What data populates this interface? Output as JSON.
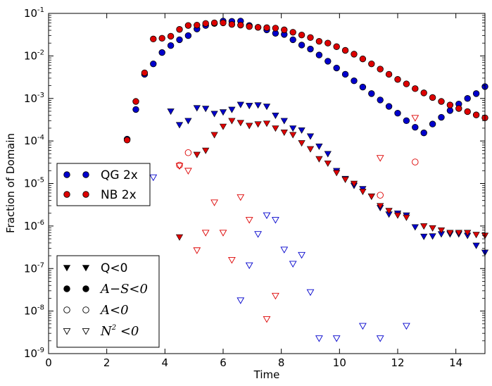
{
  "chart_data": {
    "type": "scatter",
    "xlabel": "Time",
    "ylabel": "Fraction of Domain",
    "xlim": [
      0,
      15
    ],
    "ylim": [
      1e-09,
      0.1
    ],
    "yscale": "log",
    "x_ticks": [
      0,
      2,
      4,
      6,
      8,
      10,
      12,
      14
    ],
    "y_ticks": [
      {
        "value": 1e-09,
        "base": "10",
        "exp": "-9"
      },
      {
        "value": 1e-08,
        "base": "10",
        "exp": "-8"
      },
      {
        "value": 1e-07,
        "base": "10",
        "exp": "-7"
      },
      {
        "value": 1e-06,
        "base": "10",
        "exp": "-6"
      },
      {
        "value": 1e-05,
        "base": "10",
        "exp": "-5"
      },
      {
        "value": 0.0001,
        "base": "10",
        "exp": "-4"
      },
      {
        "value": 0.001,
        "base": "10",
        "exp": "-3"
      },
      {
        "value": 0.01,
        "base": "10",
        "exp": "-2"
      },
      {
        "value": 0.1,
        "base": "10",
        "exp": "-1"
      }
    ],
    "colors": {
      "QG 2x": "#0000cc",
      "NB 2x": "#dd0000"
    },
    "legend_series": {
      "placement": "center-left",
      "entries": [
        {
          "label": "QG 2x",
          "color": "#0000cc"
        },
        {
          "label": "NB 2x",
          "color": "#dd0000"
        }
      ]
    },
    "legend_markers": {
      "placement": "lower-left",
      "entries": [
        {
          "label": "Q<0",
          "marker": "triangle-filled"
        },
        {
          "label": "A−S<0",
          "marker": "circle-filled",
          "math": true
        },
        {
          "label": "A<0",
          "marker": "circle-open",
          "math": true
        },
        {
          "label": "N",
          "sup": "2",
          "suffix": " <0",
          "marker": "triangle-open",
          "math": true
        }
      ]
    },
    "series": [
      {
        "model": "QG 2x",
        "condition": "A−S<0",
        "marker": "circle-filled",
        "color": "#0000cc",
        "x": [
          2.7,
          3.0,
          3.3,
          3.6,
          3.9,
          4.2,
          4.5,
          4.8,
          5.1,
          5.4,
          5.7,
          6.0,
          6.3,
          6.6,
          6.9,
          7.2,
          7.5,
          7.8,
          8.1,
          8.4,
          8.7,
          9.0,
          9.3,
          9.6,
          9.9,
          10.2,
          10.5,
          10.8,
          11.1,
          11.4,
          11.7,
          12.0,
          12.3,
          12.6,
          12.9,
          13.2,
          13.5,
          13.8,
          14.1,
          14.4,
          14.7,
          15.0
        ],
        "y": [
          0.00011,
          0.00055,
          0.0037,
          0.0065,
          0.012,
          0.0175,
          0.024,
          0.03,
          0.043,
          0.052,
          0.058,
          0.066,
          0.065,
          0.066,
          0.052,
          0.047,
          0.041,
          0.034,
          0.032,
          0.024,
          0.018,
          0.0145,
          0.0105,
          0.0075,
          0.0052,
          0.0037,
          0.0026,
          0.00185,
          0.0013,
          0.00092,
          0.00065,
          0.00045,
          0.0003,
          0.00021,
          0.000155,
          0.00025,
          0.00036,
          0.00052,
          0.00074,
          0.001,
          0.0013,
          0.0019
        ]
      },
      {
        "model": "NB 2x",
        "condition": "A−S<0",
        "marker": "circle-filled",
        "color": "#dd0000",
        "x": [
          2.7,
          3.0,
          3.3,
          3.6,
          3.9,
          4.2,
          4.5,
          4.8,
          5.1,
          5.4,
          5.7,
          6.0,
          6.3,
          6.6,
          6.9,
          7.2,
          7.5,
          7.8,
          8.1,
          8.4,
          8.7,
          9.0,
          9.3,
          9.6,
          9.9,
          10.2,
          10.5,
          10.8,
          11.1,
          11.4,
          11.7,
          12.0,
          12.3,
          12.6,
          12.9,
          13.2,
          13.5,
          13.8,
          14.1,
          14.4,
          14.7,
          15.0
        ],
        "y": [
          0.000105,
          0.00085,
          0.004,
          0.025,
          0.026,
          0.029,
          0.042,
          0.052,
          0.053,
          0.058,
          0.06,
          0.06,
          0.055,
          0.053,
          0.049,
          0.047,
          0.046,
          0.045,
          0.041,
          0.036,
          0.031,
          0.027,
          0.022,
          0.02,
          0.0165,
          0.0135,
          0.011,
          0.0085,
          0.0065,
          0.0049,
          0.0037,
          0.0028,
          0.0022,
          0.0017,
          0.00135,
          0.00105,
          0.00085,
          0.0007,
          0.00058,
          0.00049,
          0.00041,
          0.00035
        ]
      },
      {
        "model": "QG 2x",
        "condition": "Q<0",
        "marker": "triangle-filled",
        "color": "#0000cc",
        "x": [
          4.2,
          4.5,
          4.8,
          5.1,
          5.4,
          5.7,
          6.0,
          6.3,
          6.6,
          6.9,
          7.2,
          7.5,
          7.8,
          8.1,
          8.4,
          8.7,
          9.0,
          9.3,
          9.6,
          9.9,
          10.2,
          10.5,
          10.8,
          11.1,
          11.4,
          11.7,
          12.0,
          12.3,
          12.6,
          12.9,
          13.2,
          13.5,
          13.8,
          14.1,
          14.4,
          14.7,
          15.0
        ],
        "y": [
          0.0005,
          0.00024,
          0.0003,
          0.0006,
          0.00058,
          0.00044,
          0.00048,
          0.00055,
          0.00072,
          0.00068,
          0.0007,
          0.00065,
          0.0004,
          0.0003,
          0.0002,
          0.00018,
          0.00013,
          7.5e-05,
          5e-05,
          2e-05,
          1.3e-05,
          9e-06,
          7.5e-06,
          5e-06,
          2.7e-06,
          1.9e-06,
          2e-06,
          1.8e-06,
          9.5e-07,
          5.7e-07,
          5.8e-07,
          6.5e-07,
          6.5e-07,
          6.5e-07,
          6e-07,
          3.5e-07,
          2.4e-07
        ]
      },
      {
        "model": "NB 2x",
        "condition": "Q<0",
        "marker": "triangle-filled",
        "color": "#dd0000",
        "x": [
          4.5,
          5.1,
          5.4,
          5.7,
          6.0,
          6.3,
          6.6,
          6.9,
          7.2,
          7.5,
          7.8,
          8.1,
          8.4,
          8.7,
          9.0,
          9.3,
          9.6,
          9.9,
          10.2,
          10.5,
          10.8,
          11.1,
          11.4,
          11.7,
          12.0,
          12.3,
          12.9,
          13.2,
          13.5,
          13.8,
          14.1,
          14.4,
          14.7,
          15.0
        ],
        "y": [
          5.5e-07,
          4.8e-05,
          6e-05,
          0.00014,
          0.00022,
          0.0003,
          0.00027,
          0.00023,
          0.00025,
          0.00026,
          0.0002,
          0.00016,
          0.00014,
          9e-05,
          6.5e-05,
          3.8e-05,
          3e-05,
          1.8e-05,
          1.25e-05,
          1e-05,
          6.5e-06,
          5e-06,
          3e-06,
          2.3e-06,
          1.8e-06,
          1.6e-06,
          1e-06,
          9e-07,
          8e-07,
          7e-07,
          7e-07,
          7e-07,
          6.3e-07,
          6e-07
        ]
      },
      {
        "model": "NB 2x",
        "condition": "A<0",
        "marker": "circle-open",
        "color": "#dd0000",
        "x": [
          4.5,
          4.8,
          11.4,
          12.6
        ],
        "y": [
          2.7e-05,
          5.3e-05,
          5.3e-06,
          3.2e-05
        ]
      },
      {
        "model": "QG 2x",
        "condition": "N2<0",
        "marker": "triangle-open",
        "color": "#0000cc",
        "x": [
          3.6,
          6.6,
          6.9,
          7.2,
          7.5,
          7.8,
          8.1,
          8.4,
          8.7,
          9.0,
          9.3,
          9.9,
          10.8,
          11.4,
          12.3
        ],
        "y": [
          1.4e-05,
          1.8e-08,
          1.2e-07,
          6.5e-07,
          1.8e-06,
          1.4e-06,
          2.8e-07,
          1.3e-07,
          2.1e-07,
          2.8e-08,
          2.3e-09,
          2.3e-09,
          4.5e-09,
          2.3e-09,
          4.5e-09
        ]
      },
      {
        "model": "NB 2x",
        "condition": "N2<0",
        "marker": "triangle-open",
        "color": "#dd0000",
        "x": [
          4.5,
          4.8,
          5.1,
          5.4,
          5.7,
          6.0,
          6.3,
          6.6,
          6.9,
          7.5,
          7.8,
          11.4,
          12.6
        ],
        "y": [
          2.6e-05,
          2e-05,
          2.7e-07,
          7e-07,
          3.6e-06,
          7e-07,
          1.6e-07,
          4.8e-06,
          1.4e-06,
          6.5e-09,
          2.3e-08,
          4e-05,
          0.00035
        ]
      }
    ]
  }
}
